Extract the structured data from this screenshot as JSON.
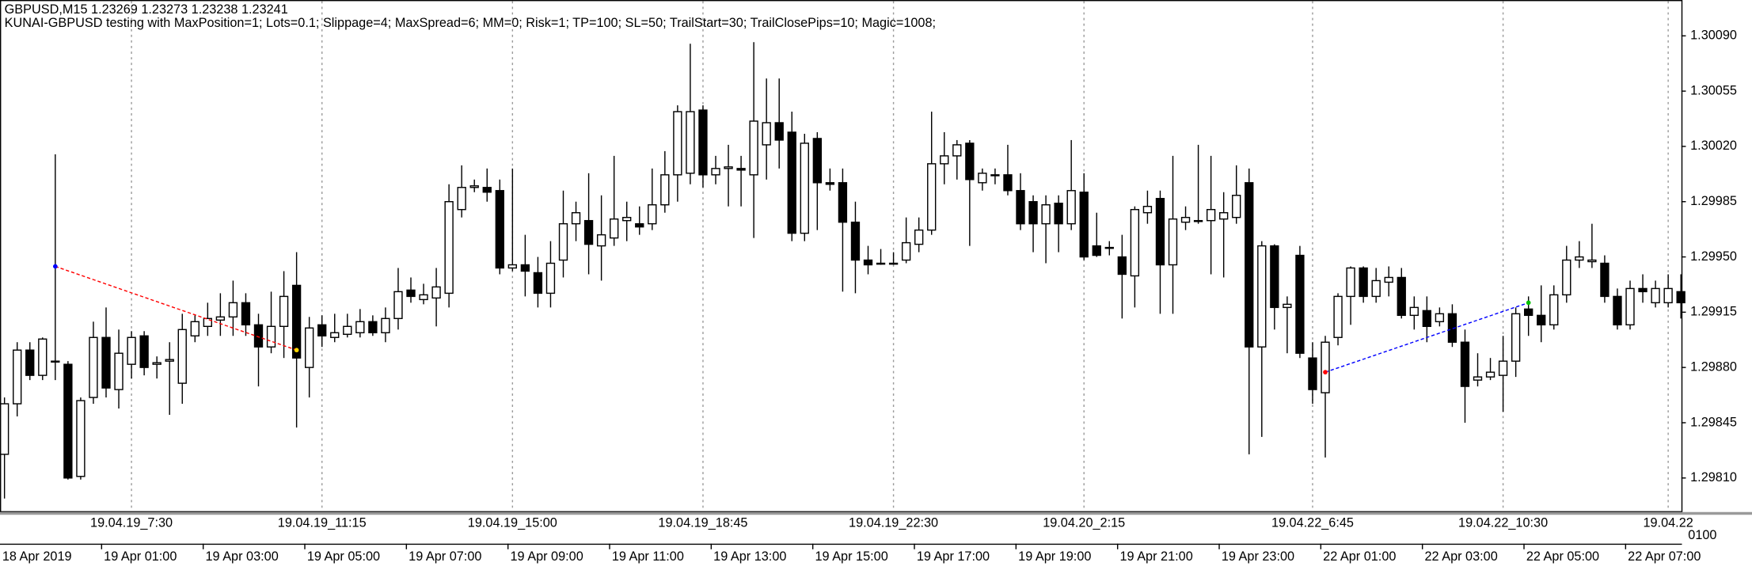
{
  "chart_data": {
    "type": "candlestick",
    "title": "GBPUSD,M15  1.23269 1.23273 1.23238 1.23241",
    "subtitle": "KUNAI-GBPUSD testing with MaxPosition=1; Lots=0.1; Slippage=4; MaxSpread=6; MM=0; Risk=1; TP=100; SL=50; TrailStart=30; TrailClosePips=10; Magic=1008;",
    "categories": [
      "18 Apr 2019",
      null,
      null,
      null,
      null,
      null,
      null,
      null,
      "19 Apr 01:00",
      null,
      null,
      null,
      null,
      null,
      null,
      null,
      "19 Apr 03:00",
      null,
      null,
      null,
      null,
      null,
      null,
      null,
      "19 Apr 05:00",
      null,
      null,
      null,
      null,
      null,
      null,
      null,
      "19 Apr 07:00",
      null,
      null,
      null,
      null,
      null,
      null,
      null,
      "19 Apr 09:00",
      null,
      null,
      null,
      null,
      null,
      null,
      null,
      "19 Apr 11:00",
      null,
      null,
      null,
      null,
      null,
      null,
      null,
      "19 Apr 13:00",
      null,
      null,
      null,
      null,
      null,
      null,
      null,
      "19 Apr 15:00",
      null,
      null,
      null,
      null,
      null,
      null,
      null,
      "19 Apr 17:00",
      null,
      null,
      null,
      null,
      null,
      null,
      null,
      "19 Apr 19:00",
      null,
      null,
      null,
      null,
      null,
      null,
      null,
      "19 Apr 21:00",
      null,
      null,
      null,
      null,
      null,
      null,
      null,
      "19 Apr 23:00",
      null,
      null,
      null,
      null,
      null,
      null,
      null,
      "22 Apr 01:00",
      null,
      null,
      null,
      null,
      null,
      null,
      null,
      "22 Apr 03:00",
      null,
      null,
      null,
      null,
      null,
      null,
      null,
      "22 Apr 05:00",
      null,
      null,
      null,
      null,
      null,
      null,
      null,
      "22 Apr 07:00",
      null,
      null,
      null,
      null
    ],
    "open": [
      1.29825,
      1.29857,
      1.29891,
      1.29875,
      1.29884,
      1.29882,
      1.29811,
      1.29861,
      1.29899,
      1.29866,
      1.29882,
      1.299,
      1.29882,
      1.29884,
      1.2987,
      1.299,
      1.29906,
      1.2991,
      1.29912,
      1.29921,
      1.29907,
      1.29893,
      1.29906,
      1.29932,
      1.2988,
      1.29907,
      1.29899,
      1.29901,
      1.29902,
      1.29909,
      1.29902,
      1.29911,
      1.29929,
      1.29923,
      1.29924,
      1.29927,
      1.2998,
      1.29994,
      1.29994,
      1.29992,
      1.29943,
      1.29945,
      1.2994,
      1.29927,
      1.29948,
      1.29971,
      1.29973,
      1.29957,
      1.29962,
      1.29973,
      1.29971,
      1.29971,
      1.29983,
      1.30002,
      1.30003,
      1.30043,
      1.30002,
      1.30006,
      1.30006,
      1.30002,
      1.30021,
      1.30035,
      1.30029,
      1.29965,
      1.30025,
      1.29997,
      1.29997,
      1.29972,
      1.29948,
      1.29946,
      1.29946,
      1.29948,
      1.29958,
      1.29967,
      1.30009,
      1.30014,
      1.30022,
      1.29997,
      1.30002,
      1.30002,
      1.29992,
      1.29985,
      1.29971,
      1.29984,
      1.29971,
      1.29991,
      1.29957,
      1.29956,
      1.2995,
      1.29938,
      1.29978,
      1.29987,
      1.29945,
      1.29972,
      1.29973,
      1.29973,
      1.29974,
      1.29975,
      1.29997,
      1.29893,
      1.29957,
      1.29918,
      1.29951,
      1.29886,
      1.29864,
      1.29899,
      1.29925,
      1.29943,
      1.29925,
      1.29934,
      1.29937,
      1.29913,
      1.29916,
      1.29909,
      1.29914,
      1.29896,
      1.29872,
      1.29874,
      1.29875,
      1.29884,
      1.29917,
      1.29913,
      1.29907,
      1.29926,
      1.29948,
      1.29947,
      1.29946,
      1.29925,
      1.29907,
      1.2993,
      1.29921,
      1.29921,
      1.29928
    ],
    "high": [
      1.29861,
      1.29896,
      1.29896,
      1.29899,
      1.30015,
      1.29884,
      1.29861,
      1.29909,
      1.29918,
      1.29904,
      1.29903,
      1.29903,
      1.29887,
      1.29896,
      1.29914,
      1.29913,
      1.29921,
      1.29927,
      1.29935,
      1.29927,
      1.29914,
      1.29928,
      1.29941,
      1.29953,
      1.29912,
      1.29913,
      1.29914,
      1.29914,
      1.29917,
      1.29913,
      1.29918,
      1.29943,
      1.29937,
      1.29933,
      1.29943,
      1.29996,
      1.30008,
      1.29999,
      1.30006,
      1.29999,
      1.30006,
      1.29964,
      1.2995,
      1.2996,
      1.29992,
      1.29985,
      1.30003,
      1.29989,
      1.30014,
      1.29985,
      1.29982,
      1.30006,
      1.30017,
      1.30046,
      1.30085,
      1.30046,
      1.30014,
      1.30021,
      1.30014,
      1.30086,
      1.30063,
      1.30063,
      1.30042,
      1.30028,
      1.30029,
      1.30006,
      1.30006,
      1.29985,
      1.29957,
      1.29955,
      1.29953,
      1.29975,
      1.29975,
      1.30042,
      1.30029,
      1.30024,
      1.30024,
      1.30006,
      1.30006,
      1.30021,
      1.30003,
      1.29989,
      1.29989,
      1.29989,
      1.30024,
      1.30003,
      1.29978,
      1.2996,
      1.29964,
      1.29982,
      1.29992,
      1.29992,
      1.30014,
      1.29982,
      1.30021,
      1.30014,
      1.29991,
      1.30008,
      1.30006,
      1.2996,
      1.29958,
      1.29925,
      1.29957,
      1.29896,
      1.299,
      1.29927,
      1.29944,
      1.29944,
      1.29943,
      1.29944,
      1.29943,
      1.29925,
      1.29925,
      1.29918,
      1.2992,
      1.29904,
      1.29889,
      1.29886,
      1.299,
      1.29918,
      1.29925,
      1.29932,
      1.29932,
      1.29957,
      1.2996,
      1.29971,
      1.29951,
      1.2993,
      1.29935,
      1.29939,
      1.29935,
      1.29939,
      1.29939
    ],
    "low": [
      1.29797,
      1.29849,
      1.29872,
      1.29872,
      1.29872,
      1.29809,
      1.29809,
      1.29857,
      1.29861,
      1.29854,
      1.29873,
      1.29875,
      1.29873,
      1.2985,
      1.29857,
      1.29896,
      1.299,
      1.299,
      1.299,
      1.299,
      1.29868,
      1.29889,
      1.29886,
      1.29842,
      1.29861,
      1.29893,
      1.29896,
      1.29899,
      1.29899,
      1.299,
      1.29896,
      1.29904,
      1.29921,
      1.2992,
      1.29906,
      1.29918,
      1.29975,
      1.29991,
      1.29985,
      1.29939,
      1.29941,
      1.29925,
      1.29918,
      1.29918,
      1.29937,
      1.2996,
      1.29939,
      1.29935,
      1.29957,
      1.2996,
      1.29964,
      1.29967,
      1.29978,
      1.29985,
      1.29996,
      1.29994,
      1.29996,
      1.29982,
      1.29982,
      1.29962,
      1.29999,
      1.30006,
      1.2996,
      1.2996,
      1.29967,
      1.29992,
      1.29928,
      1.29927,
      1.29939,
      1.29945,
      1.29945,
      1.29946,
      1.29953,
      1.29964,
      1.29996,
      1.29999,
      1.29957,
      1.29992,
      1.29996,
      1.29989,
      1.29967,
      1.29953,
      1.29946,
      1.29953,
      1.29967,
      1.29948,
      1.2995,
      1.29951,
      1.29911,
      1.29918,
      1.29971,
      1.29914,
      1.29914,
      1.29967,
      1.29971,
      1.29939,
      1.29937,
      1.29971,
      1.29825,
      1.29836,
      1.29904,
      1.29889,
      1.29886,
      1.29857,
      1.29823,
      1.29894,
      1.29907,
      1.29921,
      1.29921,
      1.29925,
      1.29911,
      1.29904,
      1.29896,
      1.29906,
      1.29893,
      1.29845,
      1.29868,
      1.29872,
      1.29852,
      1.29874,
      1.299,
      1.29896,
      1.29904,
      1.29921,
      1.29943,
      1.29943,
      1.29921,
      1.29904,
      1.29904,
      1.29921,
      1.29918,
      1.29918,
      1.29911
    ],
    "close": [
      1.29857,
      1.29891,
      1.29875,
      1.29898,
      1.29884,
      1.2981,
      1.29859,
      1.29899,
      1.29867,
      1.29889,
      1.29899,
      1.2988,
      1.29883,
      1.29885,
      1.29904,
      1.29909,
      1.29911,
      1.29912,
      1.29921,
      1.29907,
      1.29893,
      1.29906,
      1.29925,
      1.29886,
      1.29905,
      1.299,
      1.29902,
      1.29906,
      1.29909,
      1.29902,
      1.29911,
      1.29928,
      1.29925,
      1.29926,
      1.29931,
      1.29985,
      1.29994,
      1.29995,
      1.29991,
      1.29943,
      1.29945,
      1.29941,
      1.29927,
      1.29946,
      1.29971,
      1.29978,
      1.29958,
      1.29964,
      1.29974,
      1.29975,
      1.29969,
      1.29983,
      1.30002,
      1.30042,
      1.30042,
      1.30002,
      1.30006,
      1.30007,
      1.30005,
      1.30036,
      1.30035,
      1.30024,
      1.29965,
      1.30022,
      1.29997,
      1.29996,
      1.29972,
      1.29948,
      1.29945,
      1.29946,
      1.29946,
      1.29959,
      1.29967,
      1.30009,
      1.30014,
      1.30021,
      1.29999,
      1.30003,
      1.30002,
      1.29992,
      1.29971,
      1.29971,
      1.29983,
      1.29971,
      1.29992,
      1.2995,
      1.29951,
      1.29956,
      1.29939,
      1.2998,
      1.29982,
      1.29945,
      1.29974,
      1.29975,
      1.29973,
      1.2998,
      1.29978,
      1.29989,
      1.29893,
      1.29957,
      1.29918,
      1.2992,
      1.29889,
      1.29866,
      1.29896,
      1.29925,
      1.29943,
      1.29925,
      1.29935,
      1.29937,
      1.29913,
      1.29918,
      1.29906,
      1.29914,
      1.29896,
      1.29868,
      1.29874,
      1.29877,
      1.29884,
      1.29914,
      1.29913,
      1.29907,
      1.29926,
      1.29948,
      1.2995,
      1.29948,
      1.29925,
      1.29907,
      1.2993,
      1.29928,
      1.2993,
      1.2993,
      1.29921
    ],
    "up_color": "#ffffff",
    "down_color": "#000000",
    "ylim": [
      1.29789,
      1.30112
    ],
    "yticks": [
      {
        "value": 1.2981,
        "label": "1.29810"
      },
      {
        "value": 1.29845,
        "label": "1.29845"
      },
      {
        "value": 1.2988,
        "label": "1.29880"
      },
      {
        "value": 1.29915,
        "label": "1.29915"
      },
      {
        "value": 1.2995,
        "label": "1.29950"
      },
      {
        "value": 1.29985,
        "label": "1.29985"
      },
      {
        "value": 1.3002,
        "label": "1.30020"
      },
      {
        "value": 1.30055,
        "label": "1.30055"
      },
      {
        "value": 1.3009,
        "label": "1.30090"
      }
    ],
    "vlines": [
      {
        "index": 10,
        "label": "19.04.19_7:30"
      },
      {
        "index": 25,
        "label": "19.04.19_11:15"
      },
      {
        "index": 40,
        "label": "19.04.19_15:00"
      },
      {
        "index": 55,
        "label": "19.04.19_18:45"
      },
      {
        "index": 70,
        "label": "19.04.19_22:30"
      },
      {
        "index": 85,
        "label": "19.04.20_2:15"
      },
      {
        "index": 103,
        "label": "19.04.22_6:45"
      },
      {
        "index": 118,
        "label": "19.04.22_10:30"
      },
      {
        "index": 131,
        "label": "19.04.22"
      }
    ],
    "corner_label": "0100",
    "trades": [
      {
        "open_index": 4,
        "open_price": 1.29944,
        "close_index": 23,
        "close_price": 1.29891,
        "color": "#ff0000",
        "open_color": "#0000ff",
        "close_color": "#ffd700"
      },
      {
        "open_index": 104,
        "open_price": 1.29877,
        "close_index": 120,
        "close_price": 1.29921,
        "color": "#0000ff",
        "open_color": "#ff0000",
        "close_color": "#00c000"
      }
    ]
  }
}
